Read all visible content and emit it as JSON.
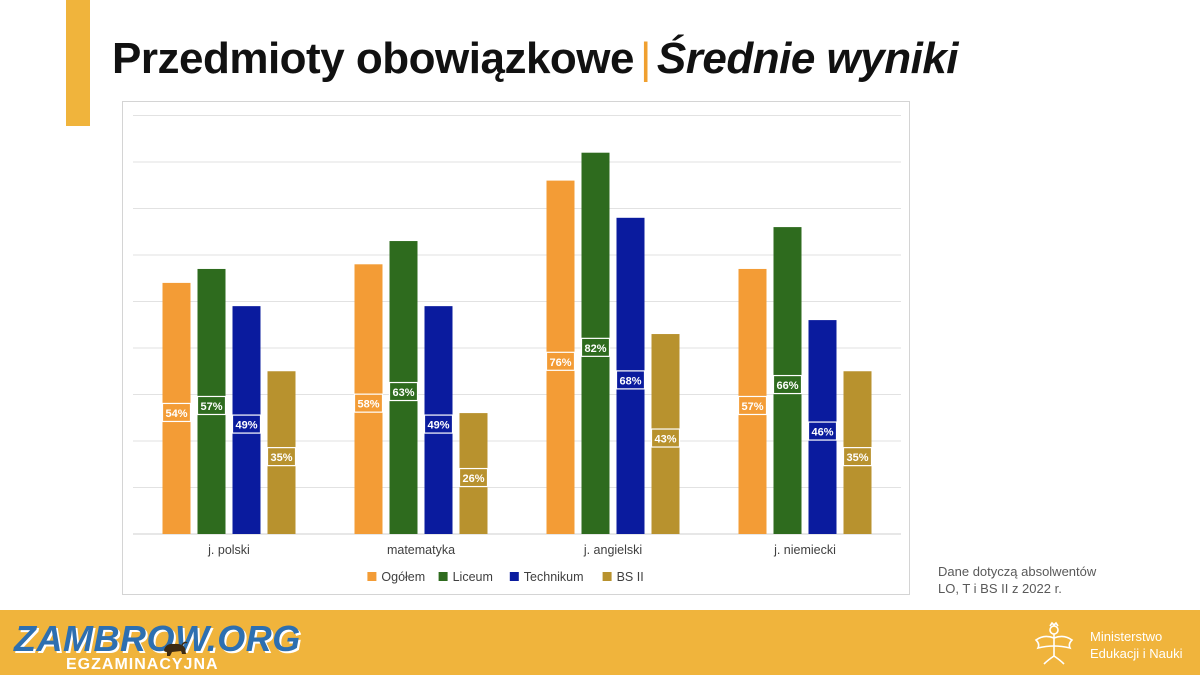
{
  "header": {
    "title_main": "Przedmioty obowiązkowe",
    "title_sep": "|",
    "title_sub": "Średnie wyniki",
    "accent_color": "#F0B43C"
  },
  "chart_data": {
    "type": "bar",
    "categories": [
      "j. polski",
      "matematyka",
      "j. angielski",
      "j. niemiecki"
    ],
    "series": [
      {
        "name": "Ogółem",
        "color": "#F39C36",
        "values": [
          54,
          58,
          76,
          57
        ]
      },
      {
        "name": "Liceum",
        "color": "#2E6B1E",
        "values": [
          57,
          63,
          82,
          66
        ]
      },
      {
        "name": "Technikum",
        "color": "#0A1B9E",
        "values": [
          49,
          49,
          68,
          46
        ]
      },
      {
        "name": "BS II",
        "color": "#B8922E",
        "values": [
          35,
          26,
          43,
          35
        ]
      }
    ],
    "value_format": "%",
    "ylim": [
      0,
      90
    ],
    "grid": true,
    "legend_position": "bottom",
    "title": "",
    "xlabel": "",
    "ylabel": ""
  },
  "note": {
    "line1": "Dane dotyczą absolwentów",
    "line2": "LO, T i BS II z 2022 r."
  },
  "footer": {
    "logo_big": "ZAMBROW.ORG",
    "logo_small": "EGZAMINACYJNA",
    "logo_icon": "bison-icon",
    "ministry_line1": "Ministerstwo",
    "ministry_line2": "Edukacji i Nauki",
    "ministry_icon": "eagle-icon",
    "background_color": "#F0B43C"
  }
}
